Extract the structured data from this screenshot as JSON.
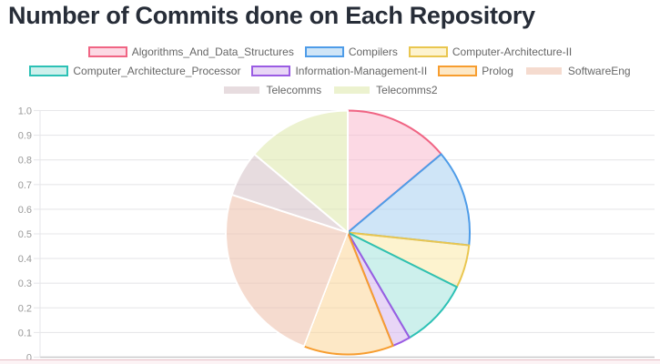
{
  "chart_data": {
    "type": "pie",
    "title": "Number of Commits done on Each Repository",
    "labels": [
      "Algorithms_And_Data_Structures",
      "Compilers",
      "Computer-Architecture-II",
      "Computer_Architecture_Processor",
      "Information-Management-II",
      "Prolog",
      "SoftwareEng",
      "Telecomms",
      "Telecomms2"
    ],
    "values_percent": [
      13.9,
      12.8,
      5.7,
      9.2,
      2.4,
      11.9,
      24.2,
      6.1,
      13.9
    ],
    "slice_fill_colors": [
      "rgba(249,186,206,0.55)",
      "rgba(168,208,240,0.55)",
      "rgba(251,233,168,0.55)",
      "rgba(164,227,220,0.55)",
      "rgba(213,180,238,0.55)",
      "rgba(251,213,151,0.55)",
      "rgba(238,195,175,0.6)",
      "rgba(211,191,196,0.55)",
      "rgba(224,233,175,0.6)"
    ],
    "slice_border_colors": [
      "#f06584",
      "#4e9ce8",
      "#e9c64f",
      "#2cc1b5",
      "#9a5ce3",
      "#f79d2f",
      "#ffffff",
      "#ffffff",
      "#ffffff"
    ],
    "legend_position": "top",
    "legend_rows": [
      [
        0,
        1,
        2
      ],
      [
        3,
        4,
        5,
        6
      ],
      [
        7,
        8
      ]
    ],
    "grid": true,
    "y_axis": {
      "min": 0,
      "max": 1,
      "ticks": [
        "1.0",
        "0.9",
        "0.8",
        "0.7",
        "0.6",
        "0.5",
        "0.4",
        "0.3",
        "0.2",
        "0.1",
        "0"
      ]
    },
    "colors": {
      "grid_line": "#e7e7ea",
      "axis_line": "#c9c9cc",
      "tick_text": "#999999",
      "title_text": "#272d38",
      "legend_text": "#666666",
      "bottom_rule": "#e7bfc7"
    }
  }
}
